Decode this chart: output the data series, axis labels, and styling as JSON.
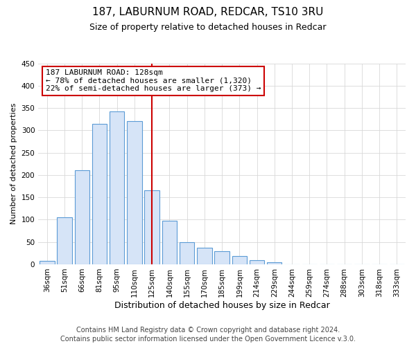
{
  "title": "187, LABURNUM ROAD, REDCAR, TS10 3RU",
  "subtitle": "Size of property relative to detached houses in Redcar",
  "xlabel": "Distribution of detached houses by size in Redcar",
  "ylabel": "Number of detached properties",
  "bar_labels": [
    "36sqm",
    "51sqm",
    "66sqm",
    "81sqm",
    "95sqm",
    "110sqm",
    "125sqm",
    "140sqm",
    "155sqm",
    "170sqm",
    "185sqm",
    "199sqm",
    "214sqm",
    "229sqm",
    "244sqm",
    "259sqm",
    "274sqm",
    "288sqm",
    "303sqm",
    "318sqm",
    "333sqm"
  ],
  "bar_values": [
    7,
    105,
    210,
    315,
    343,
    320,
    165,
    97,
    50,
    37,
    29,
    18,
    10,
    5,
    0,
    0,
    0,
    0,
    0,
    0,
    0
  ],
  "bar_color": "#d6e4f7",
  "bar_edge_color": "#5b9bd5",
  "vline_index": 6,
  "vline_color": "#cc0000",
  "annotation_text_line1": "187 LABURNUM ROAD: 128sqm",
  "annotation_text_line2": "← 78% of detached houses are smaller (1,320)",
  "annotation_text_line3": "22% of semi-detached houses are larger (373) →",
  "annotation_box_color": "#ffffff",
  "annotation_box_edgecolor": "#cc0000",
  "footer_line1": "Contains HM Land Registry data © Crown copyright and database right 2024.",
  "footer_line2": "Contains public sector information licensed under the Open Government Licence v.3.0.",
  "ylim": [
    0,
    450
  ],
  "yticks": [
    0,
    50,
    100,
    150,
    200,
    250,
    300,
    350,
    400,
    450
  ],
  "title_fontsize": 11,
  "subtitle_fontsize": 9,
  "xlabel_fontsize": 9,
  "ylabel_fontsize": 8,
  "tick_fontsize": 7.5,
  "annotation_fontsize": 8,
  "footer_fontsize": 7
}
